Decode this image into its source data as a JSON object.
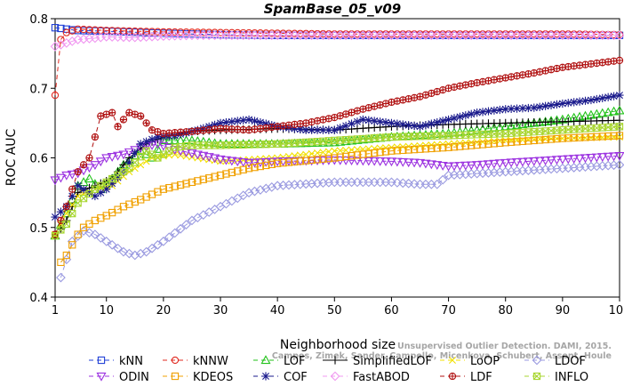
{
  "chart_data": {
    "type": "line",
    "title": "SpamBase_05_v09",
    "xlabel": "Neighborhood size",
    "ylabel": "ROC AUC",
    "xlim": [
      1,
      100
    ],
    "ylim": [
      0.4,
      0.8
    ],
    "xticks": [
      1,
      10,
      20,
      30,
      40,
      50,
      60,
      70,
      80,
      90,
      100
    ],
    "yticks": [
      0.4,
      0.5,
      0.6,
      0.7,
      0.8
    ],
    "grid": false,
    "legend_position": "bottom",
    "citation": [
      "Unsupervised Outlier Detection. DAMI, 2015.",
      "Campos, Zimek, Sander, Campello, Micenkova, Schubert, Assent, Houle"
    ],
    "series": [
      {
        "name": "kNN",
        "color": "#1f3fd6",
        "marker": "square",
        "dash": "5,4",
        "points": [
          [
            1,
            0.787
          ],
          [
            5,
            0.783
          ],
          [
            10,
            0.782
          ],
          [
            20,
            0.779
          ],
          [
            30,
            0.777
          ],
          [
            40,
            0.776
          ],
          [
            50,
            0.776
          ],
          [
            60,
            0.776
          ],
          [
            70,
            0.776
          ],
          [
            80,
            0.776
          ],
          [
            90,
            0.776
          ],
          [
            100,
            0.776
          ]
        ]
      },
      {
        "name": "kNNW",
        "color": "#e0281f",
        "marker": "circle",
        "dash": "5,4",
        "points": [
          [
            1,
            0.69
          ],
          [
            2,
            0.77
          ],
          [
            3,
            0.78
          ],
          [
            5,
            0.785
          ],
          [
            10,
            0.783
          ],
          [
            20,
            0.781
          ],
          [
            30,
            0.78
          ],
          [
            40,
            0.779
          ],
          [
            50,
            0.778
          ],
          [
            60,
            0.778
          ],
          [
            70,
            0.778
          ],
          [
            80,
            0.778
          ],
          [
            90,
            0.778
          ],
          [
            100,
            0.777
          ]
        ]
      },
      {
        "name": "LOF",
        "color": "#22c21a",
        "marker": "triangle-up",
        "dash": "5,4",
        "points": [
          [
            1,
            0.488
          ],
          [
            3,
            0.52
          ],
          [
            5,
            0.56
          ],
          [
            7,
            0.57
          ],
          [
            9,
            0.555
          ],
          [
            11,
            0.57
          ],
          [
            13,
            0.59
          ],
          [
            16,
            0.61
          ],
          [
            18,
            0.6
          ],
          [
            20,
            0.625
          ],
          [
            25,
            0.625
          ],
          [
            30,
            0.62
          ],
          [
            40,
            0.62
          ],
          [
            50,
            0.622
          ],
          [
            60,
            0.63
          ],
          [
            70,
            0.635
          ],
          [
            80,
            0.645
          ],
          [
            90,
            0.655
          ],
          [
            100,
            0.668
          ]
        ]
      },
      {
        "name": "SimplifiedLOF",
        "color": "#000000",
        "marker": "plus",
        "dash": "",
        "points": [
          [
            1,
            0.485
          ],
          [
            3,
            0.51
          ],
          [
            5,
            0.55
          ],
          [
            8,
            0.56
          ],
          [
            11,
            0.57
          ],
          [
            14,
            0.6
          ],
          [
            17,
            0.62
          ],
          [
            20,
            0.63
          ],
          [
            25,
            0.638
          ],
          [
            30,
            0.64
          ],
          [
            40,
            0.642
          ],
          [
            50,
            0.64
          ],
          [
            60,
            0.645
          ],
          [
            70,
            0.648
          ],
          [
            80,
            0.65
          ],
          [
            90,
            0.652
          ],
          [
            100,
            0.654
          ]
        ]
      },
      {
        "name": "LoOP",
        "color": "#f2e000",
        "marker": "x",
        "dash": "5,4",
        "points": [
          [
            1,
            0.49
          ],
          [
            3,
            0.52
          ],
          [
            5,
            0.545
          ],
          [
            8,
            0.555
          ],
          [
            11,
            0.56
          ],
          [
            14,
            0.58
          ],
          [
            18,
            0.6
          ],
          [
            22,
            0.605
          ],
          [
            30,
            0.595
          ],
          [
            40,
            0.6
          ],
          [
            50,
            0.61
          ],
          [
            60,
            0.615
          ],
          [
            70,
            0.62
          ],
          [
            80,
            0.625
          ],
          [
            90,
            0.628
          ],
          [
            100,
            0.63
          ]
        ]
      },
      {
        "name": "LDOF",
        "color": "#9a9ae0",
        "marker": "diamond",
        "dash": "5,4",
        "points": [
          [
            2,
            0.428
          ],
          [
            4,
            0.48
          ],
          [
            6,
            0.495
          ],
          [
            8,
            0.49
          ],
          [
            10,
            0.48
          ],
          [
            13,
            0.465
          ],
          [
            15,
            0.46
          ],
          [
            17,
            0.465
          ],
          [
            20,
            0.48
          ],
          [
            25,
            0.51
          ],
          [
            30,
            0.53
          ],
          [
            35,
            0.55
          ],
          [
            40,
            0.56
          ],
          [
            50,
            0.565
          ],
          [
            60,
            0.565
          ],
          [
            65,
            0.562
          ],
          [
            68,
            0.562
          ],
          [
            70,
            0.575
          ],
          [
            80,
            0.58
          ],
          [
            90,
            0.585
          ],
          [
            100,
            0.59
          ]
        ]
      },
      {
        "name": "ODIN",
        "color": "#9b30e0",
        "marker": "triangle-down",
        "dash": "5,4",
        "points": [
          [
            1,
            0.568
          ],
          [
            3,
            0.575
          ],
          [
            5,
            0.578
          ],
          [
            8,
            0.59
          ],
          [
            10,
            0.6
          ],
          [
            13,
            0.605
          ],
          [
            16,
            0.615
          ],
          [
            19,
            0.62
          ],
          [
            22,
            0.612
          ],
          [
            26,
            0.605
          ],
          [
            30,
            0.598
          ],
          [
            35,
            0.593
          ],
          [
            40,
            0.595
          ],
          [
            50,
            0.597
          ],
          [
            60,
            0.595
          ],
          [
            65,
            0.593
          ],
          [
            70,
            0.588
          ],
          [
            75,
            0.59
          ],
          [
            80,
            0.593
          ],
          [
            90,
            0.598
          ],
          [
            100,
            0.603
          ]
        ]
      },
      {
        "name": "KDEOS",
        "color": "#f0a000",
        "marker": "square",
        "dash": "5,4",
        "points": [
          [
            2,
            0.45
          ],
          [
            3,
            0.46
          ],
          [
            5,
            0.49
          ],
          [
            6,
            0.5
          ],
          [
            8,
            0.51
          ],
          [
            10,
            0.517
          ],
          [
            13,
            0.53
          ],
          [
            16,
            0.54
          ],
          [
            20,
            0.555
          ],
          [
            25,
            0.565
          ],
          [
            30,
            0.575
          ],
          [
            35,
            0.585
          ],
          [
            40,
            0.592
          ],
          [
            50,
            0.6
          ],
          [
            60,
            0.61
          ],
          [
            70,
            0.615
          ],
          [
            80,
            0.622
          ],
          [
            90,
            0.628
          ],
          [
            100,
            0.632
          ]
        ]
      },
      {
        "name": "COF",
        "color": "#1a1a8c",
        "marker": "star",
        "dash": "5,4",
        "points": [
          [
            1,
            0.515
          ],
          [
            3,
            0.53
          ],
          [
            5,
            0.56
          ],
          [
            8,
            0.545
          ],
          [
            10,
            0.555
          ],
          [
            13,
            0.58
          ],
          [
            16,
            0.62
          ],
          [
            19,
            0.63
          ],
          [
            22,
            0.632
          ],
          [
            26,
            0.64
          ],
          [
            30,
            0.65
          ],
          [
            35,
            0.655
          ],
          [
            40,
            0.645
          ],
          [
            45,
            0.64
          ],
          [
            50,
            0.64
          ],
          [
            55,
            0.655
          ],
          [
            60,
            0.65
          ],
          [
            65,
            0.645
          ],
          [
            70,
            0.655
          ],
          [
            75,
            0.665
          ],
          [
            80,
            0.67
          ],
          [
            85,
            0.672
          ],
          [
            90,
            0.678
          ],
          [
            95,
            0.683
          ],
          [
            100,
            0.69
          ]
        ]
      },
      {
        "name": "FastABOD",
        "color": "#f098f0",
        "marker": "diamond",
        "dash": "5,4",
        "points": [
          [
            1,
            0.76
          ],
          [
            3,
            0.765
          ],
          [
            5,
            0.77
          ],
          [
            8,
            0.772
          ],
          [
            10,
            0.774
          ],
          [
            15,
            0.773
          ],
          [
            20,
            0.775
          ],
          [
            25,
            0.776
          ],
          [
            30,
            0.776
          ],
          [
            40,
            0.776
          ],
          [
            50,
            0.776
          ],
          [
            60,
            0.776
          ],
          [
            70,
            0.776
          ],
          [
            80,
            0.776
          ],
          [
            90,
            0.776
          ],
          [
            100,
            0.776
          ]
        ]
      },
      {
        "name": "LDF",
        "color": "#b01010",
        "marker": "circle-plus",
        "dash": "5,4",
        "points": [
          [
            1,
            0.49
          ],
          [
            3,
            0.53
          ],
          [
            5,
            0.58
          ],
          [
            7,
            0.6
          ],
          [
            9,
            0.66
          ],
          [
            11,
            0.665
          ],
          [
            12,
            0.645
          ],
          [
            14,
            0.665
          ],
          [
            16,
            0.66
          ],
          [
            18,
            0.64
          ],
          [
            20,
            0.635
          ],
          [
            25,
            0.638
          ],
          [
            30,
            0.642
          ],
          [
            35,
            0.64
          ],
          [
            40,
            0.645
          ],
          [
            45,
            0.65
          ],
          [
            50,
            0.658
          ],
          [
            55,
            0.67
          ],
          [
            60,
            0.68
          ],
          [
            65,
            0.688
          ],
          [
            70,
            0.7
          ],
          [
            75,
            0.708
          ],
          [
            80,
            0.715
          ],
          [
            85,
            0.722
          ],
          [
            90,
            0.73
          ],
          [
            95,
            0.735
          ],
          [
            100,
            0.74
          ]
        ]
      },
      {
        "name": "INFLO",
        "color": "#a8d630",
        "marker": "square-x",
        "dash": "5,4",
        "points": [
          [
            1,
            0.488
          ],
          [
            3,
            0.505
          ],
          [
            5,
            0.535
          ],
          [
            8,
            0.555
          ],
          [
            11,
            0.57
          ],
          [
            14,
            0.585
          ],
          [
            17,
            0.61
          ],
          [
            19,
            0.6
          ],
          [
            22,
            0.615
          ],
          [
            25,
            0.618
          ],
          [
            30,
            0.618
          ],
          [
            40,
            0.62
          ],
          [
            50,
            0.625
          ],
          [
            60,
            0.63
          ],
          [
            70,
            0.632
          ],
          [
            80,
            0.635
          ],
          [
            90,
            0.64
          ],
          [
            100,
            0.645
          ]
        ]
      }
    ]
  }
}
